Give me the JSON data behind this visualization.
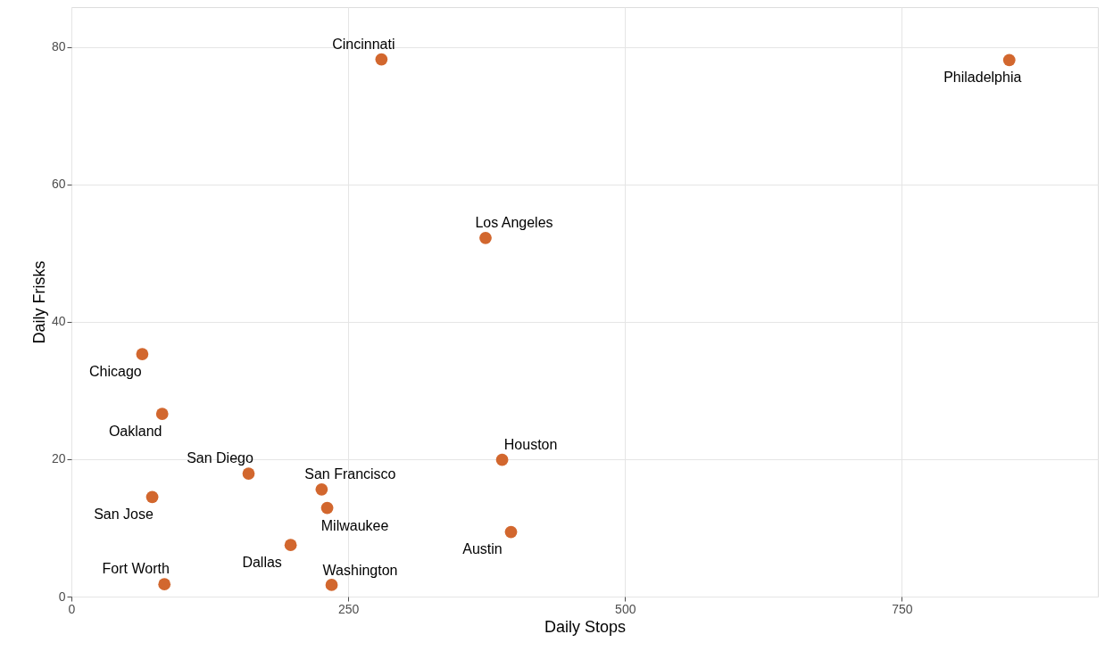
{
  "chart_data": {
    "type": "scatter",
    "xlabel": "Daily Stops",
    "ylabel": "Daily Frisks",
    "x": [
      280,
      847,
      374,
      64,
      82,
      389,
      160,
      226,
      73,
      231,
      397,
      198,
      84,
      235
    ],
    "series": [
      {
        "color": "#d2672e",
        "values": [
          78.2,
          78.1,
          52.2,
          35.3,
          26.6,
          19.9,
          17.9,
          15.6,
          14.5,
          12.9,
          9.4,
          7.5,
          1.8,
          1.7
        ]
      }
    ],
    "annotations": [
      {
        "text": "Cincinnati",
        "x": 280,
        "y": 78.2
      },
      {
        "text": "Philadelphia",
        "x": 847,
        "y": 78.1
      },
      {
        "text": "Los Angeles",
        "x": 374,
        "y": 52.2
      },
      {
        "text": "Chicago",
        "x": 64,
        "y": 35.3
      },
      {
        "text": "Oakland",
        "x": 82,
        "y": 26.6
      },
      {
        "text": "Houston",
        "x": 389,
        "y": 19.9
      },
      {
        "text": "San Diego",
        "x": 160,
        "y": 17.9
      },
      {
        "text": "San Francisco",
        "x": 226,
        "y": 15.6
      },
      {
        "text": "San Jose",
        "x": 73,
        "y": 14.5
      },
      {
        "text": "Milwaukee",
        "x": 231,
        "y": 12.9
      },
      {
        "text": "Austin",
        "x": 397,
        "y": 9.4
      },
      {
        "text": "Dallas",
        "x": 198,
        "y": 7.5
      },
      {
        "text": "Fort Worth",
        "x": 84,
        "y": 1.8
      },
      {
        "text": "Washington",
        "x": 235,
        "y": 1.7
      }
    ],
    "xlim": [
      0,
      927
    ],
    "ylim": [
      0,
      85.8
    ],
    "xticks": [
      0,
      250,
      500,
      750
    ],
    "yticks": [
      0,
      20,
      40,
      60,
      80
    ],
    "grid": true,
    "marker": "circle"
  }
}
